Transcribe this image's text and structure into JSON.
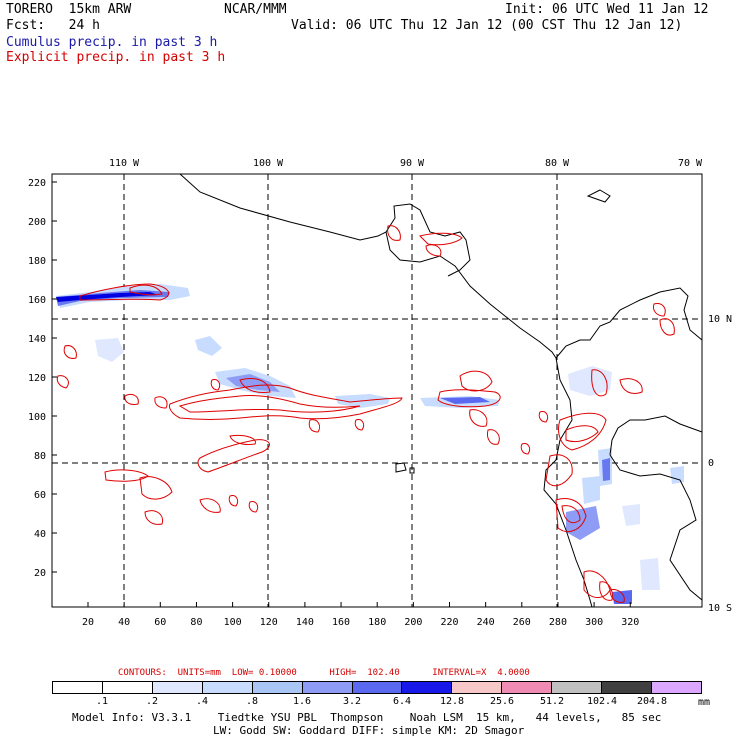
{
  "header": {
    "model": "TORERO  15km ARW",
    "org": "NCAR/MMM",
    "init": "Init: 06 UTC Wed 11 Jan 12",
    "fcst": "Fcst:   24 h",
    "valid": "Valid: 06 UTC Thu 12 Jan 12 (00 CST Thu 12 Jan 12)",
    "cumulus_label": "Cumulus precip. in past 3 h",
    "explicit_label": "Explicit precip. in past 3 h"
  },
  "map": {
    "top_lon_labels": [
      "110 W",
      "100 W",
      "90 W",
      "80 W",
      "70 W"
    ],
    "right_lat_labels": [
      "10 N",
      "0",
      "10 S"
    ],
    "x_ticks": [
      "20",
      "40",
      "60",
      "80",
      "100",
      "120",
      "140",
      "160",
      "180",
      "200",
      "220",
      "240",
      "260",
      "280",
      "300",
      "320"
    ],
    "y_ticks": [
      "20",
      "40",
      "60",
      "80",
      "100",
      "120",
      "140",
      "160",
      "180",
      "200",
      "220"
    ],
    "colors": {
      "explicit": "#e00000",
      "cumulus_light": "#c8dcff",
      "cumulus_mid": "#6a78f0",
      "cumulus_dark": "#0000e0",
      "coast": "#000000"
    }
  },
  "legend": {
    "contours": "CONTOURS:  UNITS=mm  LOW= 0.10000      HIGH=  102.40      INTERVAL=X  4.0000",
    "colorbar_labels": [
      ".1",
      ".2",
      ".4",
      ".8",
      "1.6",
      "3.2",
      "6.4",
      "12.8",
      "25.6",
      "51.2",
      "102.4",
      "204.8"
    ],
    "colorbar_colors": [
      "#ffffff",
      "#ffffff",
      "#dfe8ff",
      "#c8dcff",
      "#a9c6f5",
      "#8f9cf5",
      "#5b68f0",
      "#1818e8",
      "#f8c8c8",
      "#f08cb4",
      "#c0c0c0",
      "#404040",
      "#dba7ff"
    ],
    "unit": "mm"
  },
  "footer": {
    "line1": "Model Info: V3.3.1    Tiedtke YSU PBL  Thompson    Noah LSM  15 km,   44 levels,   85 sec",
    "line2": "LW: Godd SW: Goddard DIFF: simple KM: 2D Smagor"
  }
}
